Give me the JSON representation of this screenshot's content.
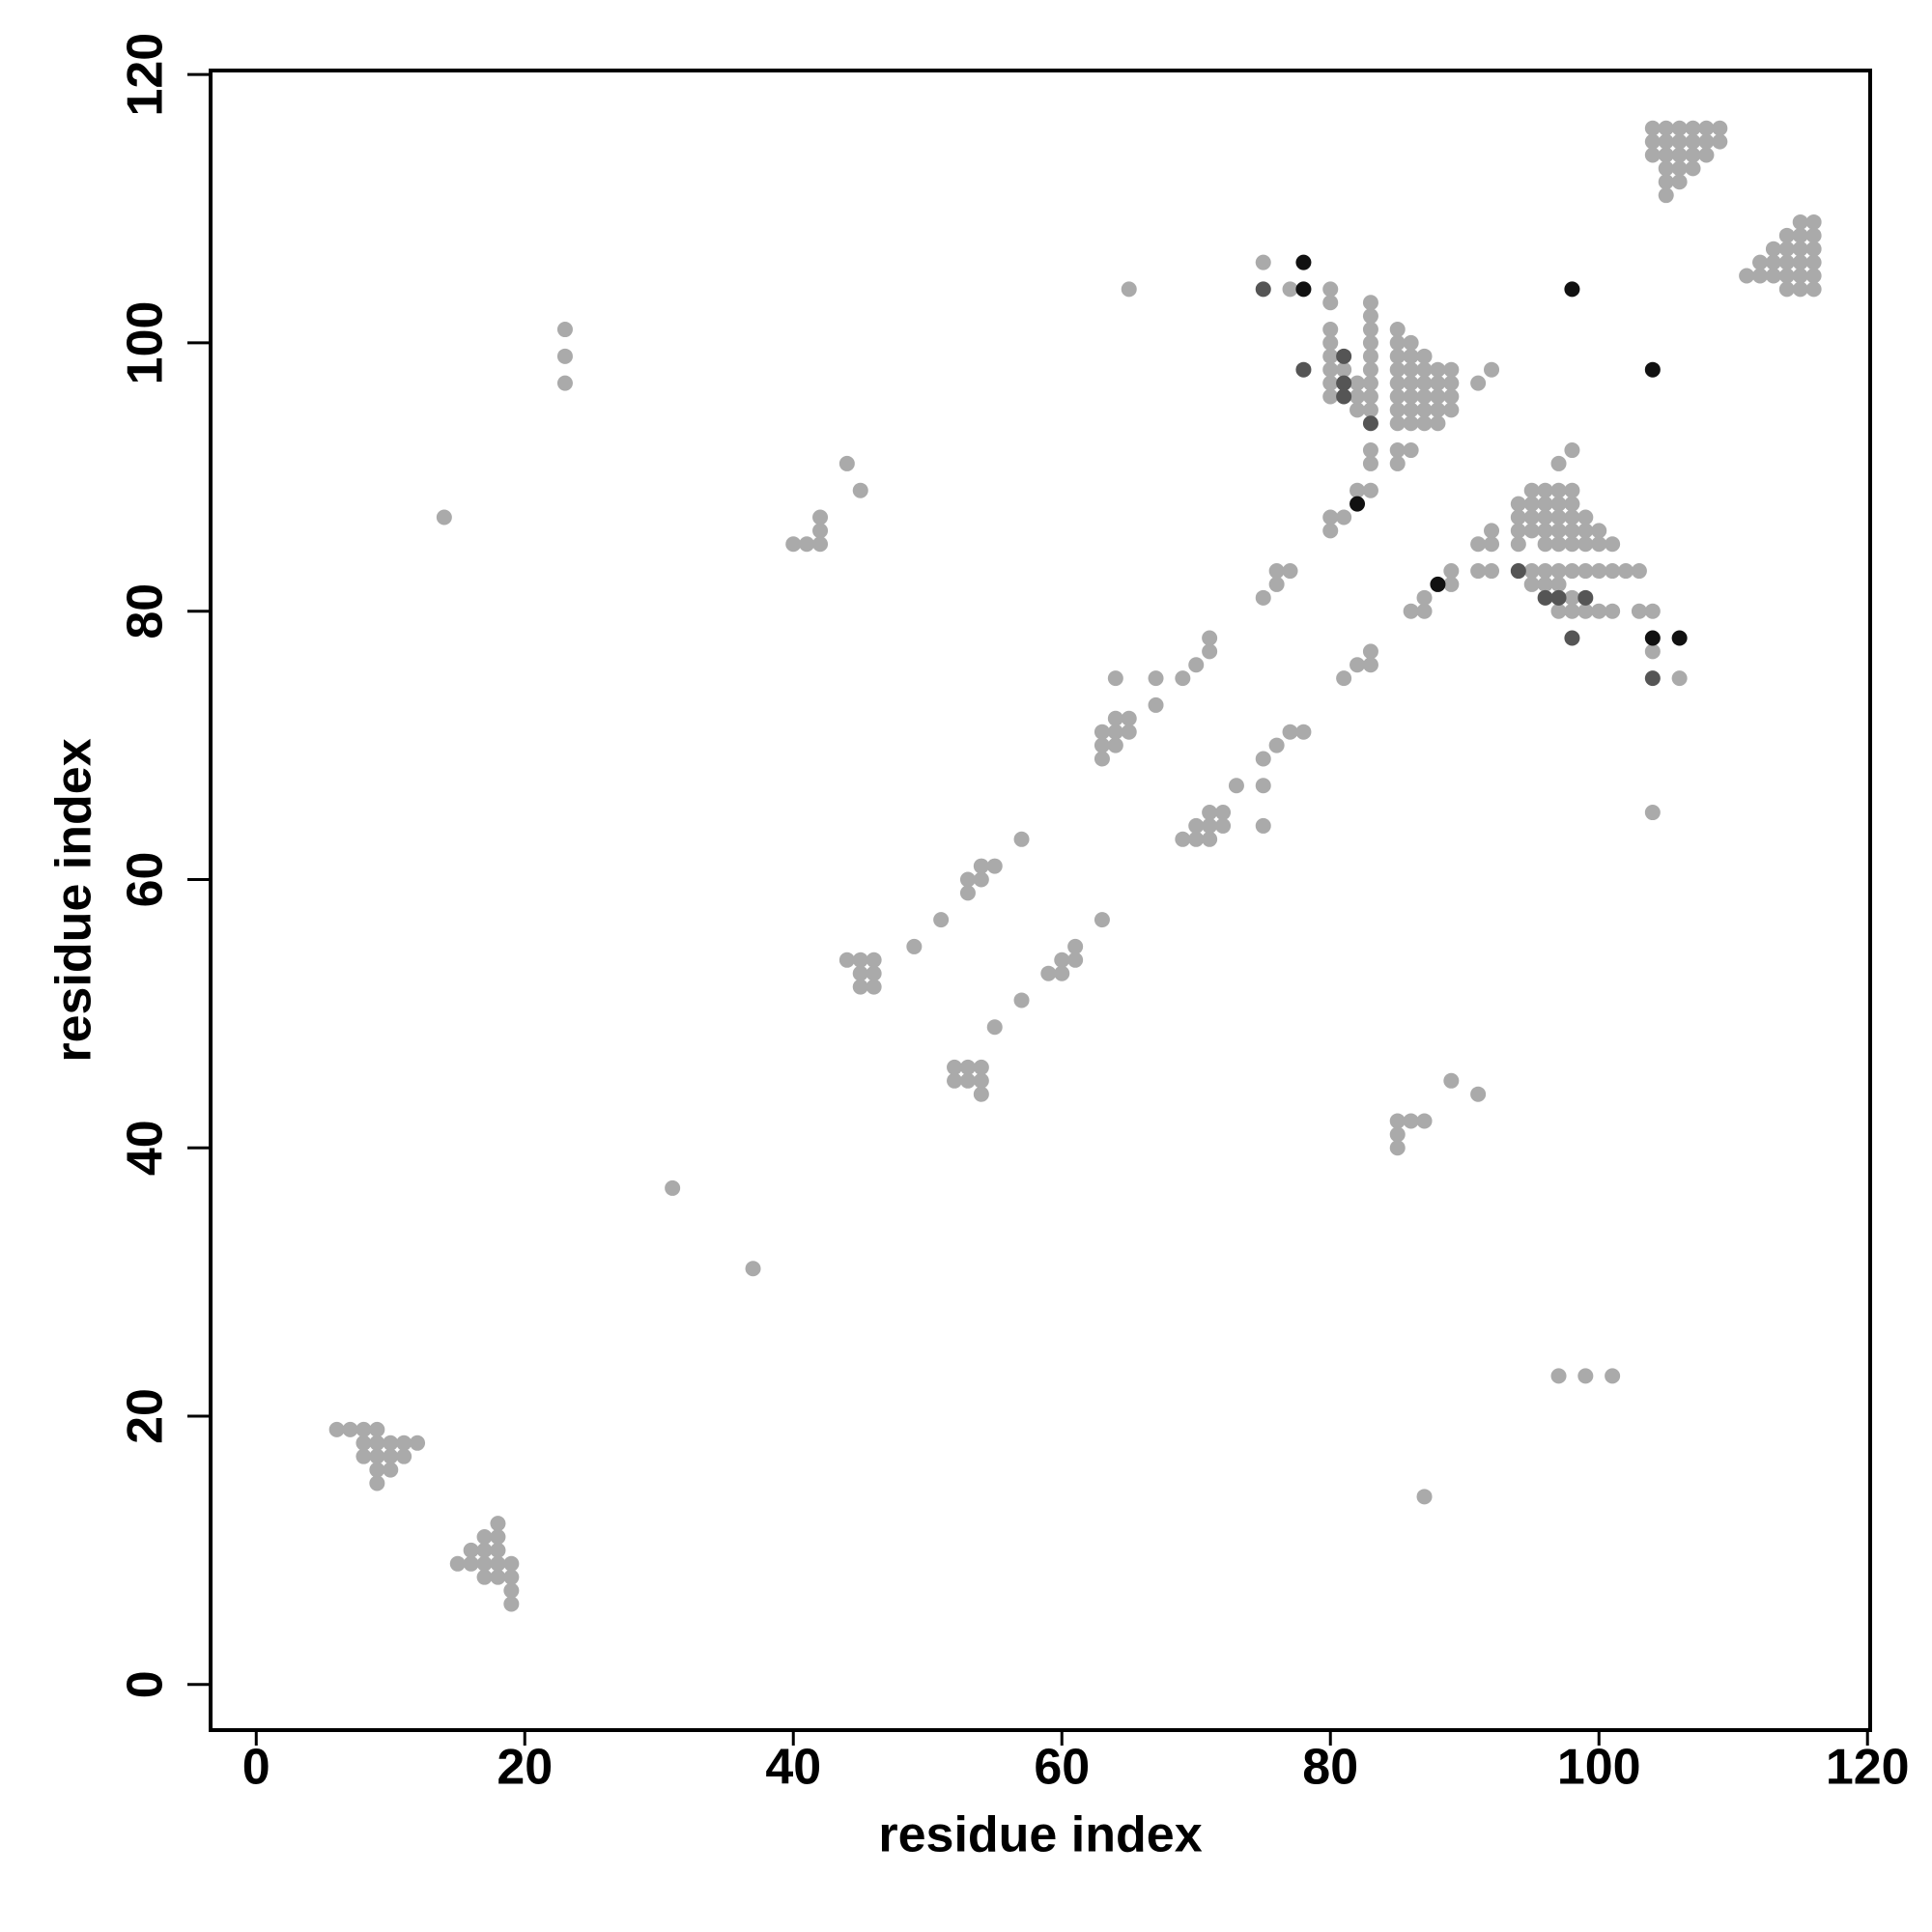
{
  "chart_data": {
    "type": "scatter",
    "xlabel": "residue index",
    "ylabel": "residue index",
    "xlim": [
      -3.4,
      120.2
    ],
    "ylim": [
      -3.4,
      120.3
    ],
    "xticks": [
      0,
      20,
      40,
      60,
      80,
      100,
      120
    ],
    "yticks": [
      0,
      20,
      40,
      60,
      80,
      100,
      120
    ],
    "series": [
      {
        "color": "#aaaaaa",
        "x": [
          6,
          7,
          8,
          9,
          8,
          9,
          10,
          11,
          12,
          8,
          9,
          10,
          11,
          9,
          10,
          9,
          15,
          16,
          16,
          17,
          17,
          17,
          18,
          18,
          18,
          18,
          18,
          19,
          19,
          19,
          19,
          17,
          23,
          23,
          23,
          14,
          31,
          37,
          40,
          41,
          42,
          42,
          42,
          44,
          45,
          44,
          45,
          46,
          45,
          46,
          45,
          46,
          49,
          51,
          53,
          53,
          54,
          54,
          55,
          57,
          52,
          53,
          54,
          52,
          53,
          54,
          54,
          55,
          57,
          59,
          60,
          60,
          61,
          61,
          63,
          63,
          63,
          63,
          64,
          64,
          64,
          65,
          65,
          64,
          67,
          67,
          69,
          70,
          71,
          71,
          65,
          69,
          70,
          70,
          71,
          71,
          71,
          72,
          72,
          73,
          75,
          75,
          75,
          76,
          77,
          78,
          75,
          76,
          76,
          77,
          75,
          77,
          80,
          80,
          80,
          80,
          80,
          80,
          80,
          80,
          81,
          81,
          82,
          82,
          82,
          83,
          83,
          83,
          83,
          83,
          83,
          83,
          83,
          83,
          83,
          83,
          83,
          82,
          80,
          80,
          81,
          81,
          82,
          83,
          83,
          85,
          85,
          85,
          85,
          85,
          85,
          85,
          85,
          85,
          85,
          86,
          86,
          86,
          86,
          86,
          86,
          86,
          86,
          87,
          87,
          87,
          87,
          87,
          87,
          88,
          88,
          88,
          88,
          88,
          89,
          89,
          89,
          89,
          91,
          92,
          86,
          87,
          87,
          89,
          89,
          91,
          91,
          92,
          92,
          92,
          85,
          85,
          85,
          86,
          87,
          89,
          91,
          87,
          97,
          99,
          101,
          94,
          94,
          94,
          94,
          95,
          95,
          95,
          95,
          95,
          95,
          96,
          96,
          96,
          96,
          96,
          96,
          96,
          97,
          97,
          97,
          97,
          97,
          97,
          97,
          97,
          97,
          98,
          98,
          98,
          98,
          98,
          98,
          98,
          98,
          98,
          99,
          99,
          99,
          99,
          99,
          100,
          100,
          100,
          100,
          101,
          101,
          101,
          102,
          103,
          103,
          104,
          104,
          106,
          104,
          104,
          105,
          106,
          107,
          108,
          109,
          104,
          105,
          106,
          107,
          108,
          109,
          104,
          105,
          106,
          107,
          108,
          105,
          106,
          107,
          105,
          106,
          105,
          111,
          112,
          112,
          113,
          113,
          113,
          114,
          114,
          114,
          114,
          114,
          115,
          115,
          115,
          115,
          115,
          115,
          116,
          116,
          116,
          116,
          116,
          116
        ],
        "y": [
          19,
          19,
          19,
          19,
          18,
          18,
          18,
          18,
          18,
          17,
          17,
          17,
          17,
          16,
          16,
          15,
          9,
          10,
          9,
          10,
          9,
          8,
          12,
          11,
          10,
          9,
          8,
          9,
          8,
          7,
          6,
          11,
          101,
          99,
          97,
          87,
          37,
          31,
          85,
          85,
          85,
          86,
          87,
          91,
          89,
          54,
          54,
          54,
          53,
          53,
          52,
          52,
          55,
          57,
          59,
          60,
          60,
          61,
          61,
          63,
          46,
          46,
          46,
          45,
          45,
          45,
          44,
          49,
          51,
          53,
          53,
          54,
          54,
          55,
          57,
          69,
          70,
          71,
          70,
          71,
          72,
          71,
          72,
          75,
          75,
          73,
          75,
          76,
          77,
          78,
          104,
          63,
          63,
          64,
          63,
          64,
          65,
          64,
          65,
          67,
          64,
          67,
          69,
          70,
          71,
          71,
          81,
          82,
          83,
          83,
          106,
          104,
          104,
          103,
          101,
          100,
          99,
          98,
          97,
          96,
          98,
          97,
          97,
          96,
          95,
          103,
          102,
          101,
          100,
          99,
          98,
          97,
          96,
          95,
          92,
          91,
          89,
          89,
          87,
          86,
          87,
          75,
          76,
          76,
          77,
          101,
          100,
          99,
          98,
          97,
          96,
          95,
          94,
          92,
          91,
          100,
          99,
          98,
          97,
          96,
          95,
          94,
          92,
          99,
          98,
          97,
          96,
          95,
          94,
          98,
          97,
          96,
          95,
          94,
          98,
          97,
          96,
          95,
          97,
          98,
          80,
          80,
          81,
          82,
          83,
          83,
          85,
          83,
          85,
          86,
          40,
          41,
          42,
          42,
          42,
          45,
          44,
          14,
          23,
          23,
          23,
          88,
          87,
          86,
          85,
          89,
          88,
          87,
          86,
          83,
          82,
          89,
          88,
          87,
          86,
          85,
          83,
          82,
          89,
          88,
          87,
          86,
          85,
          83,
          82,
          80,
          91,
          92,
          89,
          88,
          87,
          86,
          85,
          83,
          81,
          80,
          87,
          86,
          85,
          83,
          80,
          86,
          85,
          83,
          80,
          85,
          83,
          80,
          83,
          83,
          80,
          80,
          77,
          75,
          65,
          116,
          116,
          116,
          116,
          116,
          116,
          115,
          115,
          115,
          115,
          115,
          115,
          114,
          114,
          114,
          114,
          114,
          113,
          113,
          113,
          112,
          112,
          111,
          105,
          106,
          105,
          107,
          106,
          105,
          108,
          107,
          106,
          105,
          104,
          109,
          108,
          107,
          106,
          105,
          104,
          109,
          108,
          107,
          106,
          105,
          104
        ]
      },
      {
        "color": "#555555",
        "x": [
          75,
          78,
          81,
          81,
          81,
          83,
          94,
          96,
          97,
          98,
          99,
          104
        ],
        "y": [
          104,
          98,
          99,
          97,
          96,
          94,
          83,
          81,
          81,
          78,
          81,
          75
        ]
      },
      {
        "color": "#111111",
        "x": [
          78,
          78,
          98,
          104,
          82,
          88,
          104,
          106
        ],
        "y": [
          106,
          104,
          104,
          98,
          88,
          82,
          78,
          78
        ]
      }
    ]
  }
}
